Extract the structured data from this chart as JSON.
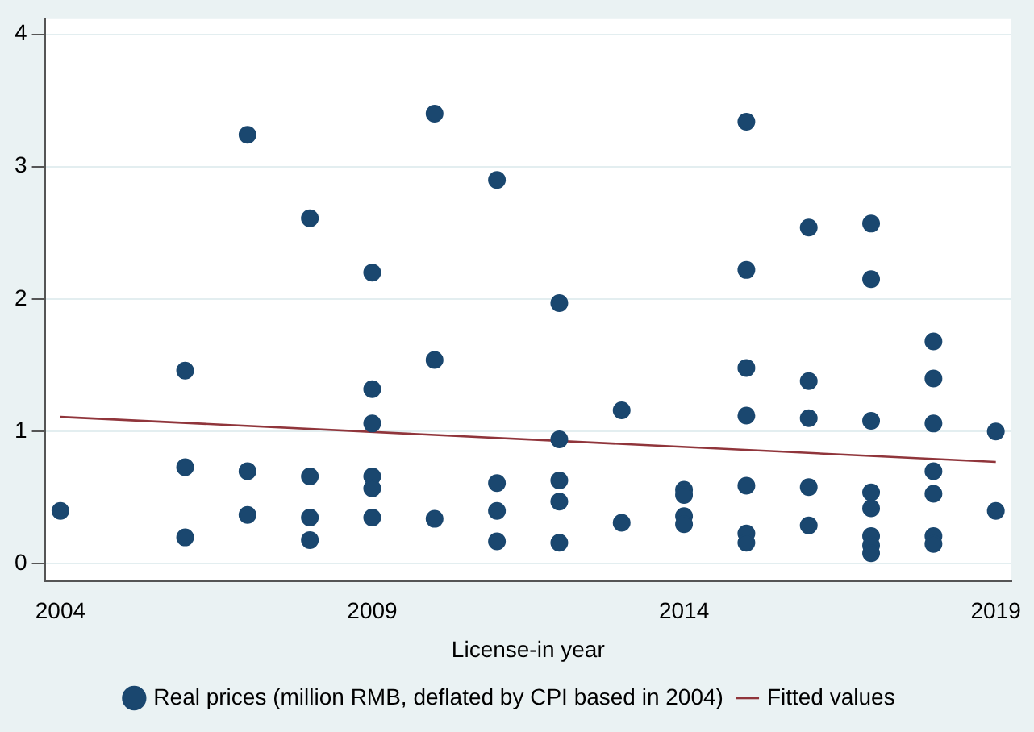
{
  "chart_data": {
    "type": "scatter",
    "xlabel": "License-in year",
    "xlim": [
      2003.75,
      2019.25
    ],
    "xticks": [
      2004,
      2009,
      2014,
      2019
    ],
    "ylim": [
      -0.13,
      4.12
    ],
    "yticks": [
      0,
      1,
      2,
      3,
      4
    ],
    "grid": "y",
    "legend": "bottom",
    "series": [
      {
        "name": "Real prices (million RMB, deflated by CPI based in 2004)",
        "color": "#1a476f",
        "marker": "circle",
        "x": [
          2004,
          2006,
          2006,
          2006,
          2007,
          2007,
          2007,
          2008,
          2008,
          2008,
          2008,
          2009,
          2009,
          2009,
          2009,
          2009,
          2009,
          2010,
          2010,
          2010,
          2011,
          2011,
          2011,
          2011,
          2012,
          2012,
          2012,
          2012,
          2012,
          2013,
          2013,
          2014,
          2014,
          2014,
          2014,
          2015,
          2015,
          2015,
          2015,
          2015,
          2015,
          2015,
          2016,
          2016,
          2016,
          2016,
          2016,
          2017,
          2017,
          2017,
          2017,
          2017,
          2017,
          2017,
          2017,
          2018,
          2018,
          2018,
          2018,
          2018,
          2018,
          2018,
          2019,
          2019
        ],
        "values": [
          0.4,
          1.46,
          0.73,
          0.2,
          3.24,
          0.7,
          0.37,
          2.61,
          0.66,
          0.35,
          0.18,
          2.2,
          1.32,
          1.06,
          0.66,
          0.57,
          0.35,
          3.4,
          1.54,
          0.34,
          2.9,
          0.61,
          0.4,
          0.17,
          1.97,
          0.94,
          0.63,
          0.47,
          0.16,
          1.16,
          0.31,
          0.56,
          0.52,
          0.36,
          0.3,
          3.34,
          2.22,
          1.48,
          1.12,
          0.59,
          0.23,
          0.16,
          2.54,
          1.38,
          1.1,
          0.58,
          0.29,
          2.57,
          2.15,
          1.08,
          0.54,
          0.42,
          0.21,
          0.14,
          0.08,
          1.68,
          1.4,
          1.06,
          0.7,
          0.53,
          0.21,
          0.15,
          1.0,
          0.4
        ]
      },
      {
        "name": "Fitted values",
        "color": "#90353b",
        "type": "line",
        "marker": "none",
        "x": [
          2004,
          2019
        ],
        "values": [
          1.11,
          0.77
        ]
      }
    ]
  }
}
